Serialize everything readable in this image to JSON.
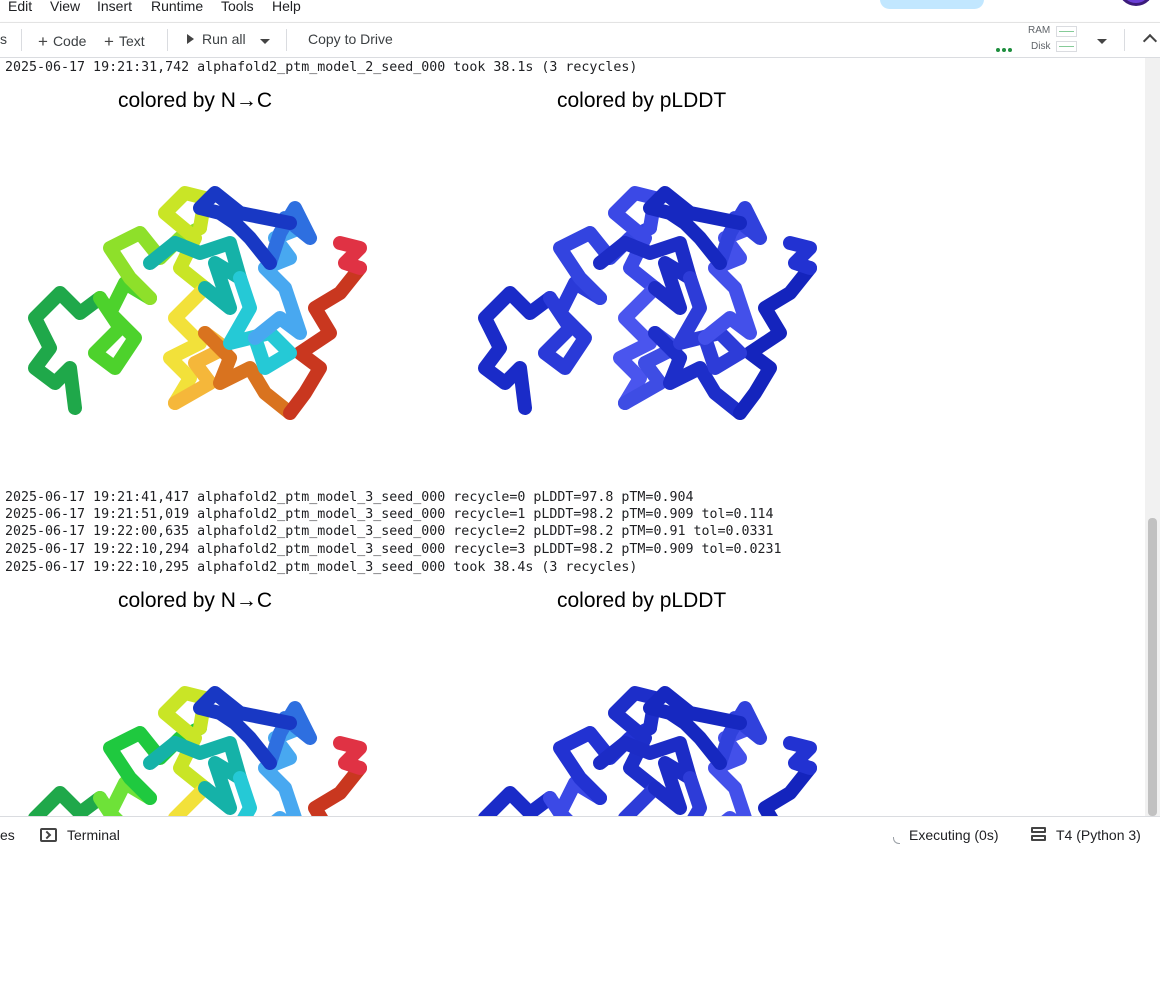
{
  "menu": {
    "items": [
      "Edit",
      "View",
      "Insert",
      "Runtime",
      "Tools",
      "Help"
    ]
  },
  "toolbar": {
    "partial_left": "s",
    "add_code": "Code",
    "add_text": "Text",
    "run_all": "Run all",
    "copy_to_drive": "Copy to Drive",
    "ram_label": "RAM",
    "disk_label": "Disk"
  },
  "output": {
    "log_block_1": "2025-06-17 19:21:31,742 alphafold2_ptm_model_2_seed_000 took 38.1s (3 recycles)",
    "figure_1": {
      "left_title": "colored by N→C",
      "right_title": "colored by pLDDT"
    },
    "log_block_2": [
      "2025-06-17 19:21:41,417 alphafold2_ptm_model_3_seed_000 recycle=0 pLDDT=97.8 pTM=0.904",
      "2025-06-17 19:21:51,019 alphafold2_ptm_model_3_seed_000 recycle=1 pLDDT=98.2 pTM=0.909 tol=0.114",
      "2025-06-17 19:22:00,635 alphafold2_ptm_model_3_seed_000 recycle=2 pLDDT=98.2 pTM=0.91 tol=0.0331",
      "2025-06-17 19:22:10,294 alphafold2_ptm_model_3_seed_000 recycle=3 pLDDT=98.2 pTM=0.909 tol=0.0231",
      "2025-06-17 19:22:10,295 alphafold2_ptm_model_3_seed_000 took 38.4s (3 recycles)"
    ],
    "figure_2": {
      "left_title": "colored by N→C",
      "right_title": "colored by pLDDT"
    }
  },
  "statusbar": {
    "partial_left": "es",
    "terminal": "Terminal",
    "executing": "Executing (0s)",
    "runtime": "T4 (Python 3)"
  },
  "colors": {
    "accent_pill": "#c2e7ff",
    "status_green": "#1e8e3e",
    "plddt_dark_blue": "#1a2bc8",
    "plddt_light_blue": "#4a55ee"
  }
}
